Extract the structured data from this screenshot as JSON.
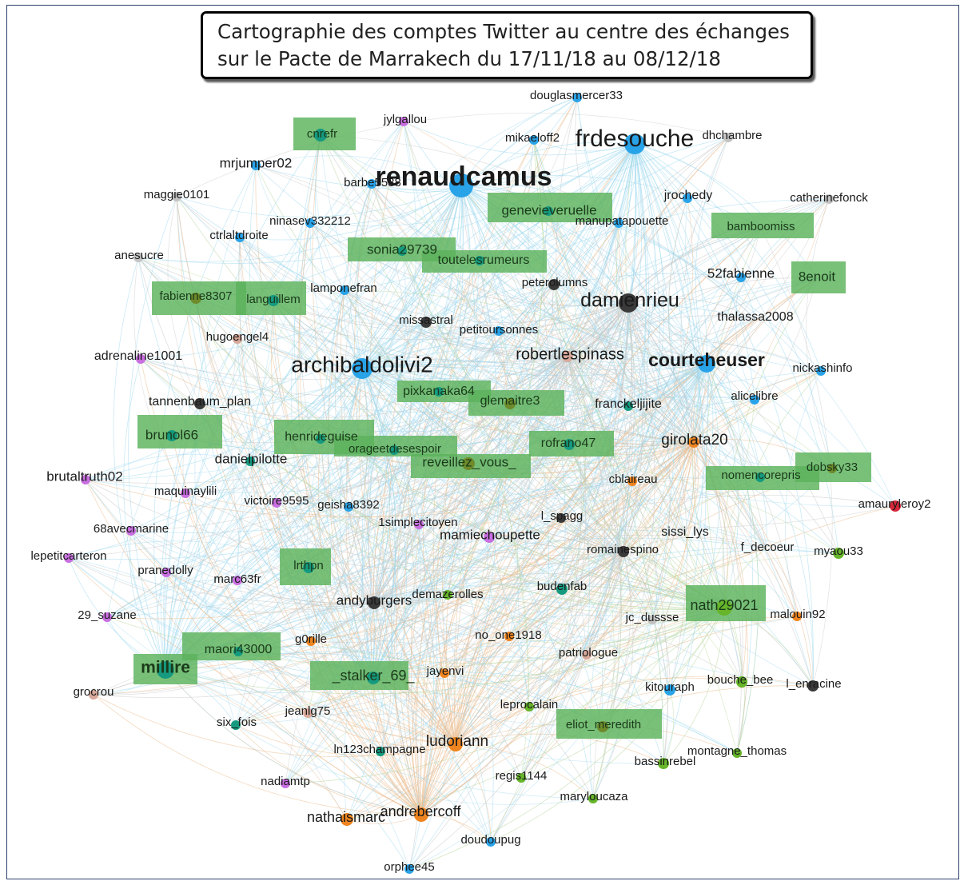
{
  "title": {
    "line1": "Cartographie des comptes Twitter au centre des échanges",
    "line2": "sur le Pacte de Marrakech du 17/11/18 au 08/12/18"
  },
  "colors": {
    "blue": "#29a3e8",
    "dark": "#3a3a3a",
    "purple": "#c86ee0",
    "teal": "#159a80",
    "orange": "#ee8520",
    "green": "#66b52a",
    "olive": "#6e8a2a",
    "gray": "#c3c3c3",
    "pink": "#d8a89a",
    "red": "#d62839",
    "highlight": "#5bb25b",
    "edge_blue": "#9ed8ee",
    "edge_orange": "#eab98a",
    "edge_green": "#b5d69a",
    "edge_gray": "#c6c6c6"
  },
  "highlighted_nodes": [
    "cnrefr",
    "genevieveruelle",
    "bamboomiss",
    "sonia29739",
    "toutelesrumeurs",
    "8enoit",
    "fabienne8307",
    "languillem",
    "pixkanaka64",
    "glemaitre3",
    "brunol66",
    "henrideguise",
    "orageetdesespoir",
    "reveillez_vous_",
    "rofrano47",
    "nomencorepris",
    "dobsky33",
    "lrthpn",
    "nath29021",
    "maori43000",
    "millire",
    "_stalker_69_",
    "eliot_meredith"
  ],
  "nodes": [
    {
      "label": "douglasmercer33",
      "color": "blue"
    },
    {
      "label": "jylgallou",
      "color": "purple"
    },
    {
      "label": "cnrefr",
      "color": "teal"
    },
    {
      "label": "mikaeloff2",
      "color": "blue"
    },
    {
      "label": "frdesouche",
      "color": "blue"
    },
    {
      "label": "dhchambre",
      "color": "gray"
    },
    {
      "label": "mrjumper02",
      "color": "blue"
    },
    {
      "label": "renaudcamus",
      "color": "blue"
    },
    {
      "label": "barbe5588",
      "color": "blue"
    },
    {
      "label": "maggie0101",
      "color": "gray"
    },
    {
      "label": "genevieveruelle",
      "color": "teal"
    },
    {
      "label": "jrochedy",
      "color": "blue"
    },
    {
      "label": "catherinefonck",
      "color": "gray"
    },
    {
      "label": "ninasev332212",
      "color": "blue"
    },
    {
      "label": "manupatapouette",
      "color": "blue"
    },
    {
      "label": "bamboomiss",
      "color": "teal"
    },
    {
      "label": "ctrlaltdroite",
      "color": "blue"
    },
    {
      "label": "sonia29739",
      "color": "teal"
    },
    {
      "label": "toutelesrumeurs",
      "color": "teal"
    },
    {
      "label": "anesucre",
      "color": "gray"
    },
    {
      "label": "8enoit",
      "color": "teal"
    },
    {
      "label": "52fabienne",
      "color": "blue"
    },
    {
      "label": "peterolumns",
      "color": "dark"
    },
    {
      "label": "lamponefran",
      "color": "blue"
    },
    {
      "label": "fabienne8307",
      "color": "olive"
    },
    {
      "label": "languillem",
      "color": "teal"
    },
    {
      "label": "damienrieu",
      "color": "dark"
    },
    {
      "label": "missastral",
      "color": "dark"
    },
    {
      "label": "petitoursonnes",
      "color": "blue"
    },
    {
      "label": "thalassa2008",
      "color": "gray"
    },
    {
      "label": "hugoengel4",
      "color": "pink"
    },
    {
      "label": "adrenaline1001",
      "color": "purple"
    },
    {
      "label": "robertlespinass",
      "color": "pink"
    },
    {
      "label": "archibaldolivi2",
      "color": "blue"
    },
    {
      "label": "courteheuser",
      "color": "blue"
    },
    {
      "label": "nickashinfo",
      "color": "blue"
    },
    {
      "label": "pixkanaka64",
      "color": "teal"
    },
    {
      "label": "alicelibre",
      "color": "blue"
    },
    {
      "label": "tannenbaum_plan",
      "color": "dark"
    },
    {
      "label": "glemaitre3",
      "color": "olive"
    },
    {
      "label": "franckeljijite",
      "color": "teal"
    },
    {
      "label": "brunol66",
      "color": "teal"
    },
    {
      "label": "henrideguise",
      "color": "teal"
    },
    {
      "label": "rofrano47",
      "color": "teal"
    },
    {
      "label": "girolata20",
      "color": "orange"
    },
    {
      "label": "orageetdesespoir",
      "color": "teal"
    },
    {
      "label": "danielpilotte",
      "color": "teal"
    },
    {
      "label": "reveillez_vous_",
      "color": "olive"
    },
    {
      "label": "brutaltruth02",
      "color": "purple"
    },
    {
      "label": "cblaireau",
      "color": "orange"
    },
    {
      "label": "nomencorepris",
      "color": "teal"
    },
    {
      "label": "dobsky33",
      "color": "olive"
    },
    {
      "label": "maquinaylili",
      "color": "purple"
    },
    {
      "label": "victoire9595",
      "color": "purple"
    },
    {
      "label": "geisha8392",
      "color": "blue"
    },
    {
      "label": "amauryleroy2",
      "color": "red"
    },
    {
      "label": "l_spagg",
      "color": "dark"
    },
    {
      "label": "1simplecitoyen",
      "color": "purple"
    },
    {
      "label": "68avecmarine",
      "color": "purple"
    },
    {
      "label": "mamiechoupette",
      "color": "purple"
    },
    {
      "label": "sissi_lys",
      "color": "gray"
    },
    {
      "label": "f_decoeur",
      "color": "gray"
    },
    {
      "label": "myaou33",
      "color": "green"
    },
    {
      "label": "romainespino",
      "color": "dark"
    },
    {
      "label": "lepetitcarteron",
      "color": "purple"
    },
    {
      "label": "pranedolly",
      "color": "purple"
    },
    {
      "label": "lrthpn",
      "color": "teal"
    },
    {
      "label": "marc63fr",
      "color": "purple"
    },
    {
      "label": "budenfab",
      "color": "teal"
    },
    {
      "label": "demazerolles",
      "color": "green"
    },
    {
      "label": "andyburgers",
      "color": "dark"
    },
    {
      "label": "nath29021",
      "color": "green"
    },
    {
      "label": "malouin92",
      "color": "orange"
    },
    {
      "label": "jc_dussse",
      "color": "gray"
    },
    {
      "label": "29_suzane",
      "color": "purple"
    },
    {
      "label": "g0rille",
      "color": "orange"
    },
    {
      "label": "maori43000",
      "color": "teal"
    },
    {
      "label": "no_one1918",
      "color": "orange"
    },
    {
      "label": "patriologue",
      "color": "pink"
    },
    {
      "label": "millire",
      "color": "teal"
    },
    {
      "label": "_stalker_69_",
      "color": "teal"
    },
    {
      "label": "jayenvi",
      "color": "orange"
    },
    {
      "label": "bouche_bee",
      "color": "green"
    },
    {
      "label": "l_enracine",
      "color": "dark"
    },
    {
      "label": "kitouraph",
      "color": "blue"
    },
    {
      "label": "grocrou",
      "color": "pink"
    },
    {
      "label": "leprocalain",
      "color": "green"
    },
    {
      "label": "six_fois",
      "color": "teal"
    },
    {
      "label": "jeanlg75",
      "color": "pink"
    },
    {
      "label": "eliot_meredith",
      "color": "olive"
    },
    {
      "label": "ln123champagne",
      "color": "teal"
    },
    {
      "label": "ludoriann",
      "color": "orange"
    },
    {
      "label": "montagne_thomas",
      "color": "green"
    },
    {
      "label": "bassinrebel",
      "color": "green"
    },
    {
      "label": "regis1144",
      "color": "green"
    },
    {
      "label": "nadiamtp",
      "color": "purple"
    },
    {
      "label": "maryloucaza",
      "color": "green"
    },
    {
      "label": "nathaismarc",
      "color": "orange"
    },
    {
      "label": "andrebercoff",
      "color": "orange"
    },
    {
      "label": "doudoupug",
      "color": "blue"
    },
    {
      "label": "orphee45",
      "color": "blue"
    }
  ]
}
